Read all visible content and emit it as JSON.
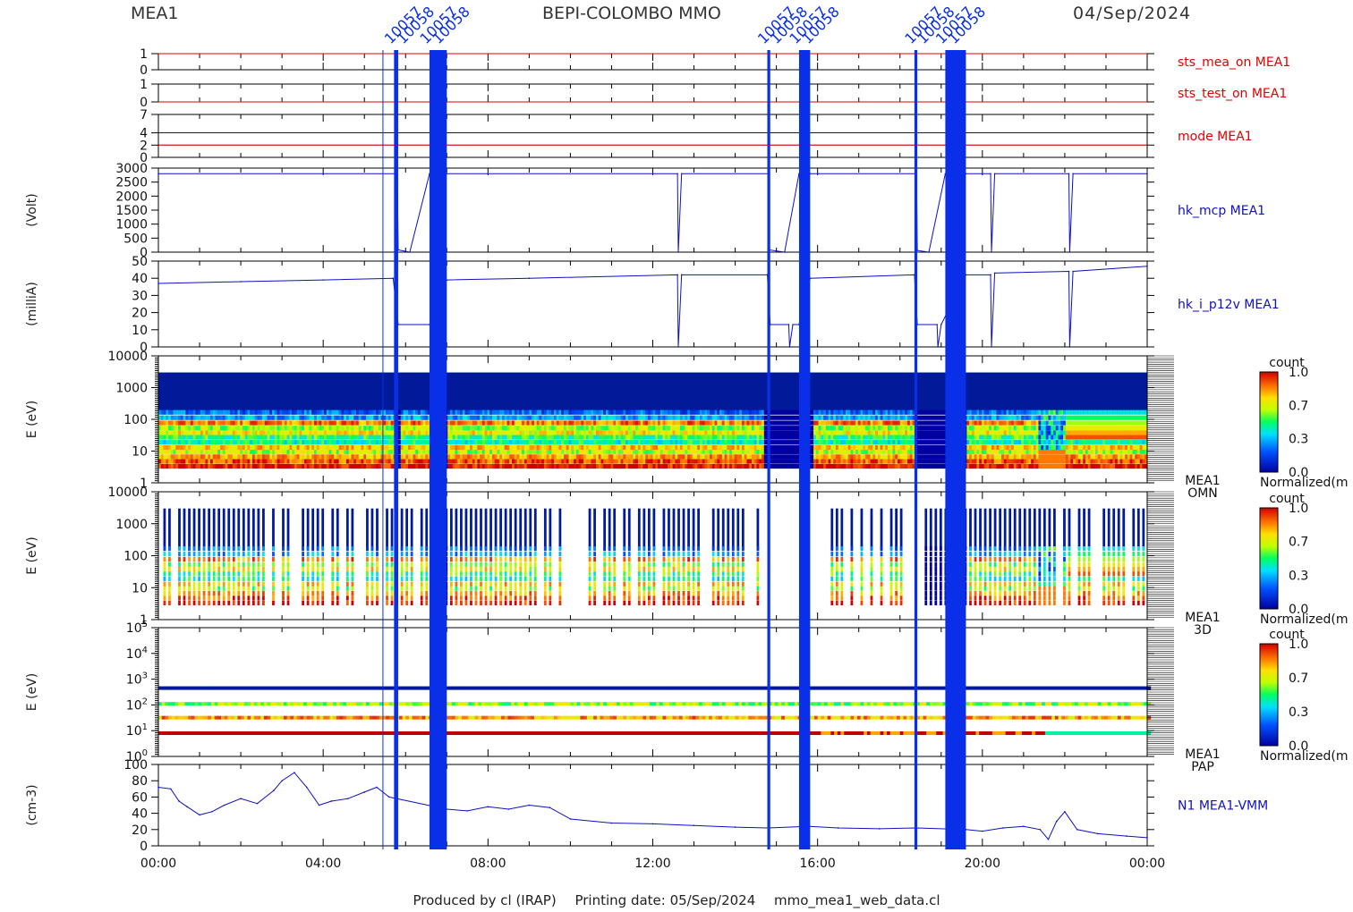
{
  "header": {
    "left": "MEA1",
    "center": "BEPI-COLOMBO MMO",
    "right": "04/Sep/2024"
  },
  "footer": {
    "produced_by": "Produced by cl (IRAP)",
    "printing_date": "Printing date: 05/Sep/2024",
    "file": "mmo_mea1_web_data.cl"
  },
  "colors": {
    "status_line": "#e00000",
    "data_line": "#1010c0",
    "gap_fill": "#0a2fe8",
    "spectrogram_background": "#001a9a"
  },
  "chart_data": {
    "type": "line",
    "x_unit": "time of day (hours)",
    "x_range": [
      0,
      24
    ],
    "x_tick_labels": [
      "00:00",
      "04:00",
      "08:00",
      "12:00",
      "16:00",
      "20:00",
      "00:00"
    ],
    "x_ticks": [
      0,
      4,
      8,
      12,
      16,
      20,
      24
    ],
    "gap_labels": [
      "10057",
      "10058"
    ],
    "data_gaps": [
      [
        5.72,
        5.82
      ],
      [
        6.58,
        7.0
      ],
      [
        14.78,
        14.85
      ],
      [
        15.55,
        15.82
      ],
      [
        18.35,
        18.42
      ],
      [
        19.1,
        19.6
      ]
    ],
    "panels": [
      {
        "id": "sts_mea_on",
        "right_label": "sts_mea_on MEA1",
        "label_color": "red",
        "y_ticks": [
          "1",
          "0"
        ],
        "ylim": [
          0,
          1
        ],
        "value": 1
      },
      {
        "id": "sts_test_on",
        "right_label": "sts_test_on MEA1",
        "label_color": "red",
        "y_ticks": [
          "1",
          "0"
        ],
        "ylim": [
          0,
          1
        ],
        "value": 0
      },
      {
        "id": "mode",
        "right_label": "mode MEA1",
        "label_color": "red",
        "y_ticks": [
          "7",
          "4",
          "2",
          "0"
        ],
        "ylim": [
          0,
          7
        ],
        "value": 2
      },
      {
        "id": "hk_mcp",
        "ylabel": "(Volt)",
        "right_label": "hk_mcp MEA1",
        "label_color": "blue",
        "y_ticks": [
          "3000",
          "2500",
          "2000",
          "1500",
          "1000",
          "500",
          "0"
        ],
        "ylim": [
          0,
          3000
        ],
        "series": [
          {
            "x": [
              0,
              5.8,
              5.82,
              6.1,
              6.58,
              7.0,
              12.6,
              12.62,
              12.7,
              14.8,
              14.82,
              15.2,
              15.55,
              15.82,
              18.4,
              18.42,
              18.7,
              19.1,
              19.6,
              20.2,
              20.22,
              20.3,
              22.1,
              22.12,
              22.2,
              24
            ],
            "y": [
              2800,
              2800,
              80,
              0,
              2800,
              2800,
              2800,
              0,
              2800,
              2800,
              80,
              0,
              2800,
              2800,
              2800,
              60,
              0,
              2800,
              2800,
              2800,
              0,
              2800,
              2800,
              0,
              2800,
              2800
            ]
          }
        ]
      },
      {
        "id": "hk_i_p12v",
        "ylabel": "(milliA)",
        "right_label": "hk_i_p12v MEA1",
        "label_color": "blue",
        "y_ticks": [
          "50",
          "40",
          "30",
          "20",
          "10",
          "0"
        ],
        "ylim": [
          0,
          50
        ],
        "series": [
          {
            "x": [
              0,
              2,
              4,
              5.7,
              5.82,
              6.58,
              7.0,
              9,
              12.6,
              12.62,
              12.7,
              14.78,
              14.85,
              15.3,
              15.32,
              15.4,
              15.55,
              15.82,
              18.35,
              18.42,
              18.9,
              18.92,
              19.0,
              19.6,
              20.2,
              20.22,
              20.3,
              22.1,
              22.12,
              22.2,
              24
            ],
            "y": [
              37,
              38,
              39,
              40,
              13,
              13,
              39,
              40,
              42,
              0,
              42,
              42,
              13,
              13,
              0,
              13,
              13,
              40,
              42,
              13,
              13,
              0,
              13,
              42,
              42,
              0,
              43,
              44,
              0,
              44,
              47
            ]
          }
        ]
      },
      {
        "id": "omn",
        "type": "heatmap",
        "ylabel": "E (eV)",
        "right_label_lines": [
          "MEA1",
          "OMN"
        ],
        "y_scale": "log",
        "y_ticks": [
          "10000",
          "1000",
          "100",
          "10",
          "1"
        ],
        "ylim": [
          1,
          10000
        ],
        "colorbar": {
          "title": "count",
          "ticks": [
            "1.0",
            "0.7",
            "0.3",
            "0.0"
          ],
          "label": "Normalized(m"
        }
      },
      {
        "id": "3d",
        "type": "heatmap",
        "ylabel": "E (eV)",
        "right_label_lines": [
          "MEA1",
          "3D"
        ],
        "y_scale": "log",
        "y_ticks": [
          "10000",
          "1000",
          "100",
          "10",
          "1"
        ],
        "ylim": [
          1,
          10000
        ],
        "colorbar": {
          "title": "count",
          "ticks": [
            "1.0",
            "0.7",
            "0.3",
            "0.0"
          ],
          "label": "Normalized(m"
        }
      },
      {
        "id": "pap",
        "type": "heatmap",
        "ylabel": "E (eV)",
        "right_label_lines": [
          "MEA1",
          "PAP"
        ],
        "y_scale": "log",
        "y_ticks": [
          "10^5",
          "10^4",
          "10^3",
          "10^2",
          "10^1",
          "10^0"
        ],
        "ylim": [
          1,
          100000
        ],
        "colorbar": {
          "title": "count",
          "ticks": [
            "1.0",
            "0.7",
            "0.3",
            "0.0"
          ],
          "label": "Normalized(m"
        }
      },
      {
        "id": "n1",
        "ylabel": "(cm-3)",
        "right_label": "N1 MEA1-VMM",
        "label_color": "blue",
        "y_ticks": [
          "100",
          "80",
          "60",
          "40",
          "20",
          "0"
        ],
        "ylim": [
          0,
          100
        ],
        "series": [
          {
            "x": [
              0,
              0.3,
              0.5,
              0.7,
              1.0,
              1.3,
              1.6,
              2.0,
              2.4,
              2.8,
              3.0,
              3.3,
              3.6,
              3.9,
              4.2,
              4.6,
              5.0,
              5.3,
              5.6,
              7.0,
              7.5,
              8.0,
              8.5,
              9.0,
              9.5,
              10.0,
              11.0,
              12.0,
              13.0,
              14.0,
              14.8,
              15.8,
              16.5,
              17.5,
              18.4,
              19.6,
              20.0,
              20.5,
              21.0,
              21.4,
              21.6,
              21.8,
              22.0,
              22.3,
              22.8,
              23.5,
              24
            ],
            "y": [
              72,
              70,
              55,
              48,
              38,
              42,
              50,
              58,
              52,
              68,
              80,
              90,
              72,
              50,
              55,
              58,
              66,
              72,
              60,
              45,
              43,
              48,
              45,
              50,
              47,
              33,
              28,
              27,
              25,
              23,
              22,
              24,
              22,
              21,
              22,
              20,
              18,
              22,
              24,
              20,
              8,
              30,
              42,
              20,
              15,
              12,
              10
            ]
          }
        ]
      }
    ]
  }
}
